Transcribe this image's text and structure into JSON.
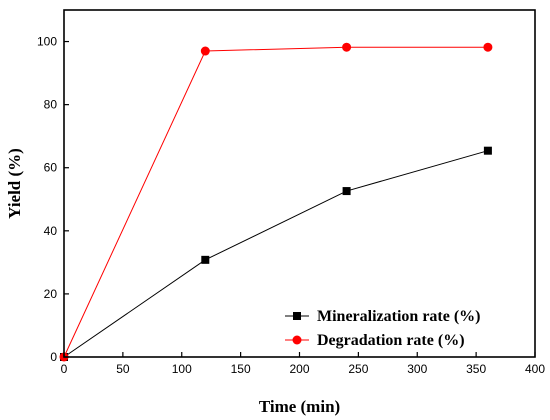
{
  "chart_data": {
    "type": "line",
    "title": "",
    "xlabel": "Time (min)",
    "ylabel": "Yield (%)",
    "xlim": [
      0,
      400
    ],
    "ylim": [
      0,
      110
    ],
    "xticks": [
      0,
      50,
      100,
      150,
      200,
      250,
      300,
      350,
      400
    ],
    "yticks": [
      0,
      20,
      40,
      60,
      80,
      100
    ],
    "grid": false,
    "legend_position": "bottom-right",
    "series": [
      {
        "name": "Mineralization rate (%)",
        "color": "#000000",
        "marker": "square",
        "x": [
          0,
          120,
          240,
          360
        ],
        "y": [
          0,
          30.8,
          52.6,
          65.4
        ]
      },
      {
        "name": "Degradation rate (%)",
        "color": "#ff0000",
        "marker": "circle",
        "x": [
          0,
          120,
          240,
          360
        ],
        "y": [
          0,
          97.0,
          98.2,
          98.2
        ]
      }
    ]
  }
}
